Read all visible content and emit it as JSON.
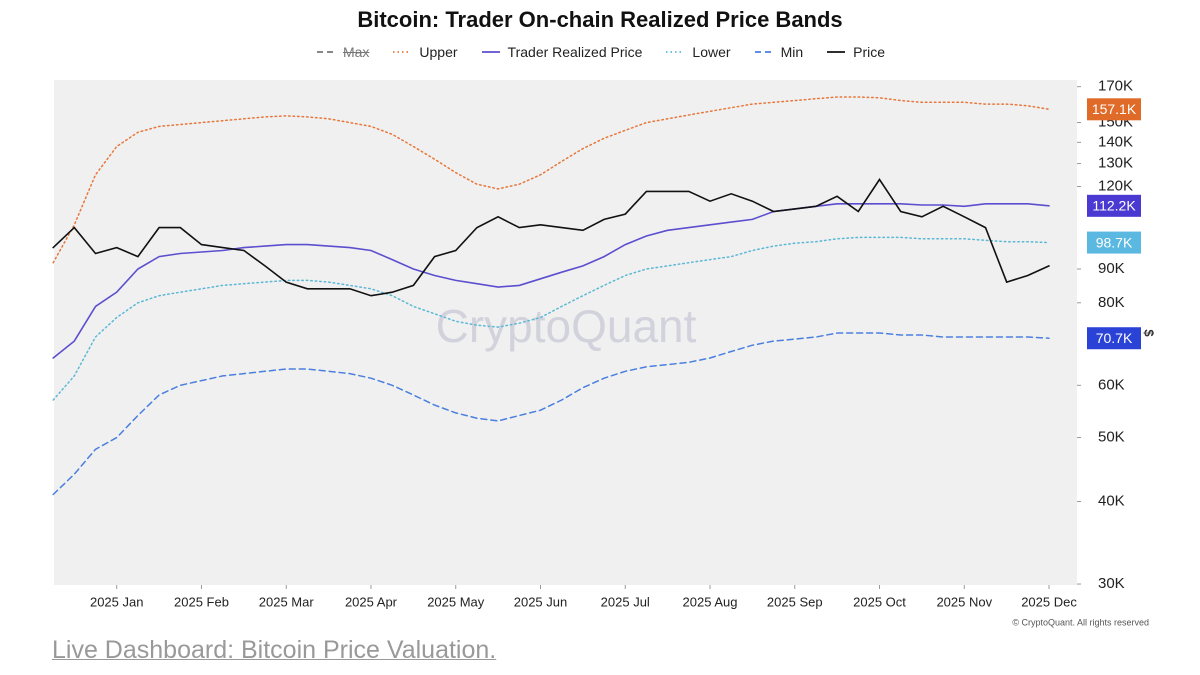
{
  "chart_data": {
    "type": "line",
    "title": "Bitcoin: Trader On-chain Realized Price Bands",
    "watermark": "CryptoQuant",
    "copyright": "© CryptoQuant. All rights reserved",
    "y_unit": "$",
    "log_scale": true,
    "ylim": [
      29900,
      174000
    ],
    "yticks": [
      {
        "value": 30000,
        "label": "30K"
      },
      {
        "value": 40000,
        "label": "40K"
      },
      {
        "value": 50000,
        "label": "50K"
      },
      {
        "value": 60000,
        "label": "60K"
      },
      {
        "value": 80000,
        "label": "80K"
      },
      {
        "value": 90000,
        "label": "90K"
      },
      {
        "value": 120000,
        "label": "120K"
      },
      {
        "value": 130000,
        "label": "130K"
      },
      {
        "value": 140000,
        "label": "140K"
      },
      {
        "value": 150000,
        "label": "150K"
      },
      {
        "value": 170000,
        "label": "170K"
      }
    ],
    "xlim": [
      -0.74,
      11.33
    ],
    "xticks": [
      {
        "value": 0,
        "label": "2025 Jan"
      },
      {
        "value": 1,
        "label": "2025 Feb"
      },
      {
        "value": 2,
        "label": "2025 Mar"
      },
      {
        "value": 3,
        "label": "2025 Apr"
      },
      {
        "value": 4,
        "label": "2025 May"
      },
      {
        "value": 5,
        "label": "2025 Jun"
      },
      {
        "value": 6,
        "label": "2025 Jul"
      },
      {
        "value": 7,
        "label": "2025 Aug"
      },
      {
        "value": 8,
        "label": "2025 Sep"
      },
      {
        "value": 9,
        "label": "2025 Oct"
      },
      {
        "value": 10,
        "label": "2025 Nov"
      },
      {
        "value": 11,
        "label": "2025 Dec"
      }
    ],
    "x": [
      -0.75,
      -0.5,
      -0.25,
      0,
      0.25,
      0.5,
      0.75,
      1,
      1.25,
      1.5,
      1.75,
      2,
      2.25,
      2.5,
      2.75,
      3,
      3.25,
      3.5,
      3.75,
      4,
      4.25,
      4.5,
      4.75,
      5,
      5.25,
      5.5,
      5.75,
      6,
      6.25,
      6.5,
      6.75,
      7,
      7.25,
      7.5,
      7.75,
      8,
      8.25,
      8.5,
      8.75,
      9,
      9.25,
      9.5,
      9.75,
      10,
      10.25,
      10.5,
      10.75,
      11
    ],
    "series": [
      {
        "name": "Max",
        "color": "#777777",
        "dash": "dashed",
        "visible": false
      },
      {
        "name": "Upper",
        "color": "#e8763a",
        "dash": "dotted",
        "last_label": "157.1K",
        "label_color": "#e06a28",
        "values": [
          92000,
          105000,
          125000,
          138000,
          145000,
          148000,
          149000,
          150000,
          151000,
          152000,
          153000,
          153500,
          153000,
          152000,
          150000,
          148000,
          144000,
          138000,
          132000,
          126000,
          121000,
          119000,
          121000,
          125000,
          131000,
          137000,
          142000,
          146000,
          150000,
          152000,
          154000,
          156000,
          158000,
          160000,
          161000,
          162000,
          163000,
          164000,
          164000,
          163500,
          162000,
          161000,
          161000,
          161000,
          160000,
          160000,
          159000,
          157100
        ]
      },
      {
        "name": "Trader Realized Price",
        "color": "#5b4fcf",
        "dash": "solid",
        "last_label": "112.2K",
        "label_color": "#4b3ad1",
        "values": [
          66000,
          70000,
          79000,
          83000,
          90000,
          94000,
          95000,
          95500,
          96000,
          97000,
          97500,
          98000,
          98000,
          97500,
          97000,
          96000,
          93000,
          90000,
          88000,
          86500,
          85500,
          84500,
          85000,
          87000,
          89000,
          91000,
          94000,
          98000,
          101000,
          103000,
          104000,
          105000,
          106000,
          107000,
          110000,
          111000,
          112000,
          113000,
          113000,
          113000,
          113000,
          112500,
          112500,
          112000,
          113000,
          113000,
          113000,
          112200
        ]
      },
      {
        "name": "Lower",
        "color": "#5bb8d6",
        "dash": "dotted",
        "last_label": "98.7K",
        "label_color": "#5bb8e0",
        "values": [
          57000,
          62000,
          71000,
          76000,
          80000,
          82000,
          83000,
          84000,
          85000,
          85500,
          86000,
          86500,
          86500,
          86000,
          85000,
          84000,
          82000,
          79000,
          77000,
          75000,
          74000,
          73500,
          74500,
          76000,
          79000,
          82000,
          85000,
          88000,
          90000,
          91000,
          92000,
          93000,
          94000,
          96000,
          97500,
          98500,
          99000,
          100000,
          100500,
          100500,
          100500,
          100000,
          100000,
          100000,
          99500,
          99000,
          99000,
          98700
        ]
      },
      {
        "name": "Min",
        "color": "#4a7fe0",
        "dash": "dashed",
        "last_label": "70.7K",
        "label_color": "#2a42d6",
        "values": [
          41000,
          44000,
          48000,
          50000,
          54000,
          58000,
          60000,
          61000,
          62000,
          62500,
          63000,
          63500,
          63500,
          63000,
          62500,
          61500,
          60000,
          58000,
          56000,
          54500,
          53500,
          53000,
          54000,
          55000,
          57000,
          59500,
          61500,
          63000,
          64000,
          64500,
          65000,
          66000,
          67500,
          69000,
          70000,
          70500,
          71000,
          72000,
          72000,
          72000,
          71500,
          71500,
          71000,
          71000,
          71000,
          71000,
          71000,
          70700
        ]
      },
      {
        "name": "Price",
        "color": "#111111",
        "dash": "solid",
        "values": [
          97000,
          104000,
          95000,
          97000,
          94000,
          104000,
          104000,
          98000,
          97000,
          96000,
          91000,
          86000,
          84000,
          84000,
          84000,
          82000,
          83000,
          85000,
          94000,
          96000,
          104000,
          108000,
          104000,
          105000,
          104000,
          103000,
          107000,
          109000,
          118000,
          118000,
          118000,
          114000,
          117000,
          114000,
          110000,
          111000,
          112000,
          116000,
          110000,
          123000,
          110000,
          108000,
          112000,
          108000,
          104000,
          86000,
          88000,
          91000
        ]
      }
    ]
  },
  "link": "Live Dashboard: Bitcoin Price Valuation."
}
